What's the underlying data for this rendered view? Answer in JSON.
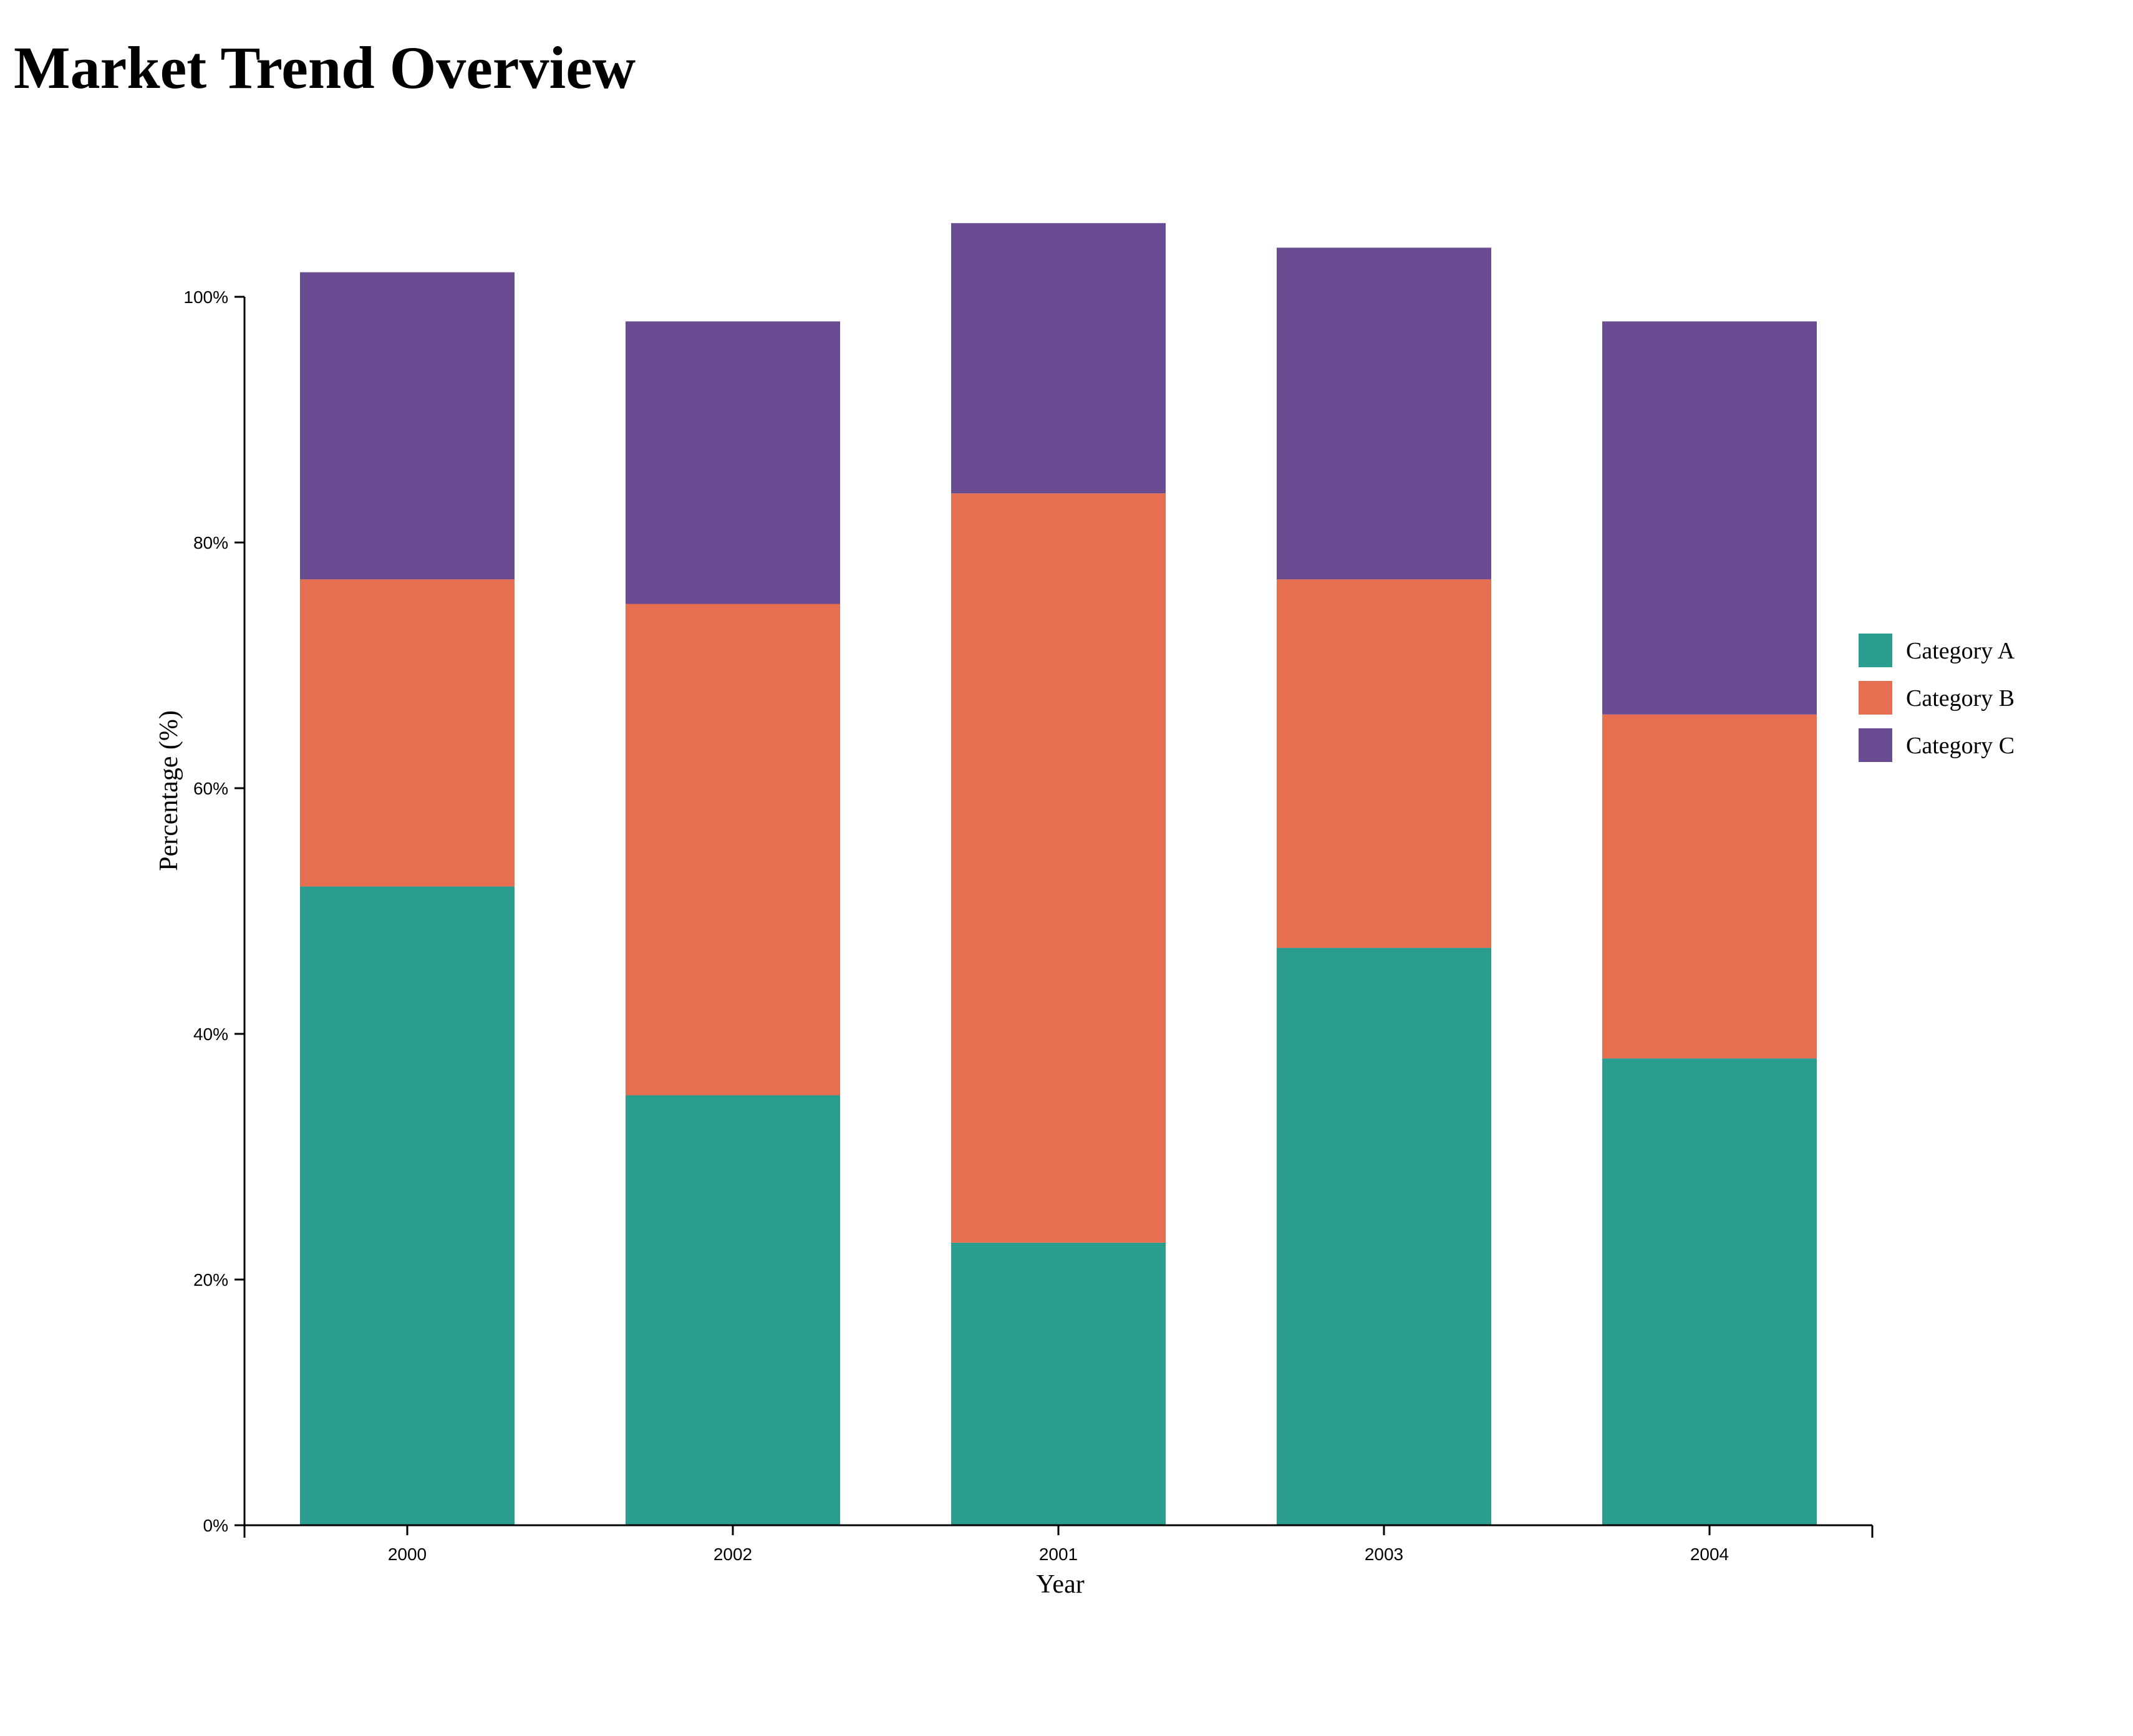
{
  "title": "Market Trend Overview",
  "chart_data": {
    "type": "bar",
    "stacked": true,
    "title": "Market Trend Overview",
    "xlabel": "Year",
    "ylabel": "Percentage (%)",
    "categories": [
      "2000",
      "2002",
      "2001",
      "2003",
      "2004"
    ],
    "series": [
      {
        "name": "Category A",
        "color": "#2a9d8f",
        "values": [
          52,
          35,
          23,
          47,
          38
        ]
      },
      {
        "name": "Category B",
        "color": "#e76f51",
        "values": [
          25,
          40,
          61,
          30,
          28
        ]
      },
      {
        "name": "Category C",
        "color": "#6a4c93",
        "values": [
          25,
          23,
          22,
          27,
          32
        ]
      }
    ],
    "ylim": [
      0,
      100
    ],
    "yticks": [
      0,
      20,
      40,
      60,
      80,
      100
    ],
    "ytick_labels": [
      "0%",
      "20%",
      "40%",
      "60%",
      "80%",
      "100%"
    ],
    "grid": false,
    "legend_position": "right"
  }
}
